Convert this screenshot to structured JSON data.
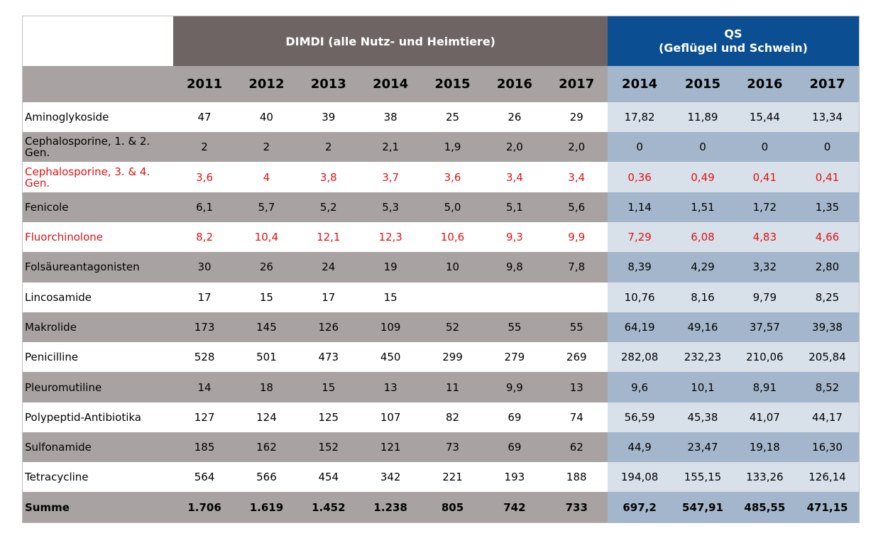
{
  "chart_data": {
    "type": "table",
    "groups": [
      {
        "name": "DIMDI (alle Nutz- und Heimtiere)",
        "years": [
          "2011",
          "2012",
          "2013",
          "2014",
          "2015",
          "2016",
          "2017"
        ]
      },
      {
        "name_line1": "QS",
        "name_line2": "(Geflügel und Schwein)",
        "years": [
          "2014",
          "2015",
          "2016",
          "2017"
        ]
      }
    ],
    "rows": [
      {
        "label": "Aminoglykoside",
        "highlight": false,
        "dimdi": [
          "47",
          "40",
          "39",
          "38",
          "25",
          "26",
          "29"
        ],
        "qs": [
          "17,82",
          "11,89",
          "15,44",
          "13,34"
        ]
      },
      {
        "label": "Cephalosporine, 1. & 2. Gen.",
        "highlight": false,
        "dimdi": [
          "2",
          "2",
          "2",
          "2,1",
          "1,9",
          "2,0",
          "2,0"
        ],
        "qs": [
          "0",
          "0",
          "0",
          "0"
        ]
      },
      {
        "label": "Cephalosporine, 3. & 4. Gen.",
        "highlight": true,
        "dimdi": [
          "3,6",
          "4",
          "3,8",
          "3,7",
          "3,6",
          "3,4",
          "3,4"
        ],
        "qs": [
          "0,36",
          "0,49",
          "0,41",
          "0,41"
        ]
      },
      {
        "label": "Fenicole",
        "highlight": false,
        "dimdi": [
          "6,1",
          "5,7",
          "5,2",
          "5,3",
          "5,0",
          "5,1",
          "5,6"
        ],
        "qs": [
          "1,14",
          "1,51",
          "1,72",
          "1,35"
        ]
      },
      {
        "label": "Fluorchinolone",
        "highlight": true,
        "dimdi": [
          "8,2",
          "10,4",
          "12,1",
          "12,3",
          "10,6",
          "9,3",
          "9,9"
        ],
        "qs": [
          "7,29",
          "6,08",
          "4,83",
          "4,66"
        ]
      },
      {
        "label": "Folsäureantagonisten",
        "highlight": false,
        "dimdi": [
          "30",
          "26",
          "24",
          "19",
          "10",
          "9,8",
          "7,8"
        ],
        "qs": [
          "8,39",
          "4,29",
          "3,32",
          "2,80"
        ]
      },
      {
        "label": "Lincosamide",
        "highlight": false,
        "dimdi": [
          "17",
          "15",
          "17",
          "15",
          "",
          "",
          ""
        ],
        "qs": [
          "10,76",
          "8,16",
          "9,79",
          "8,25"
        ]
      },
      {
        "label": "Makrolide",
        "highlight": false,
        "dimdi": [
          "173",
          "145",
          "126",
          "109",
          "52",
          "55",
          "55"
        ],
        "qs": [
          "64,19",
          "49,16",
          "37,57",
          "39,38"
        ]
      },
      {
        "label": "Penicilline",
        "highlight": false,
        "dimdi": [
          "528",
          "501",
          "473",
          "450",
          "299",
          "279",
          "269"
        ],
        "qs": [
          "282,08",
          "232,23",
          "210,06",
          "205,84"
        ]
      },
      {
        "label": "Pleuromutiline",
        "highlight": false,
        "dimdi": [
          "14",
          "18",
          "15",
          "13",
          "11",
          "9,9",
          "13"
        ],
        "qs": [
          "9,6",
          "10,1",
          "8,91",
          "8,52"
        ]
      },
      {
        "label": "Polypeptid-Antibiotika",
        "highlight": false,
        "dimdi": [
          "127",
          "124",
          "125",
          "107",
          "82",
          "69",
          "74"
        ],
        "qs": [
          "56,59",
          "45,38",
          "41,07",
          "44,17"
        ]
      },
      {
        "label": "Sulfonamide",
        "highlight": false,
        "dimdi": [
          "185",
          "162",
          "152",
          "121",
          "73",
          "69",
          "62"
        ],
        "qs": [
          "44,9",
          "23,47",
          "19,18",
          "16,30"
        ]
      },
      {
        "label": "Tetracycline",
        "highlight": false,
        "dimdi": [
          "564",
          "566",
          "454",
          "342",
          "221",
          "193",
          "188"
        ],
        "qs": [
          "194,08",
          "155,15",
          "133,26",
          "126,14"
        ]
      }
    ],
    "total": {
      "label": "Summe",
      "dimdi": [
        "1.706",
        "1.619",
        "1.452",
        "1.238",
        "805",
        "742",
        "733"
      ],
      "qs": [
        "697,2",
        "547,91",
        "485,55",
        "471,15"
      ]
    },
    "colors": {
      "dimdi_header": "#6e6464",
      "qs_header": "#0b4f92",
      "highlight_text": "#e01212"
    }
  }
}
